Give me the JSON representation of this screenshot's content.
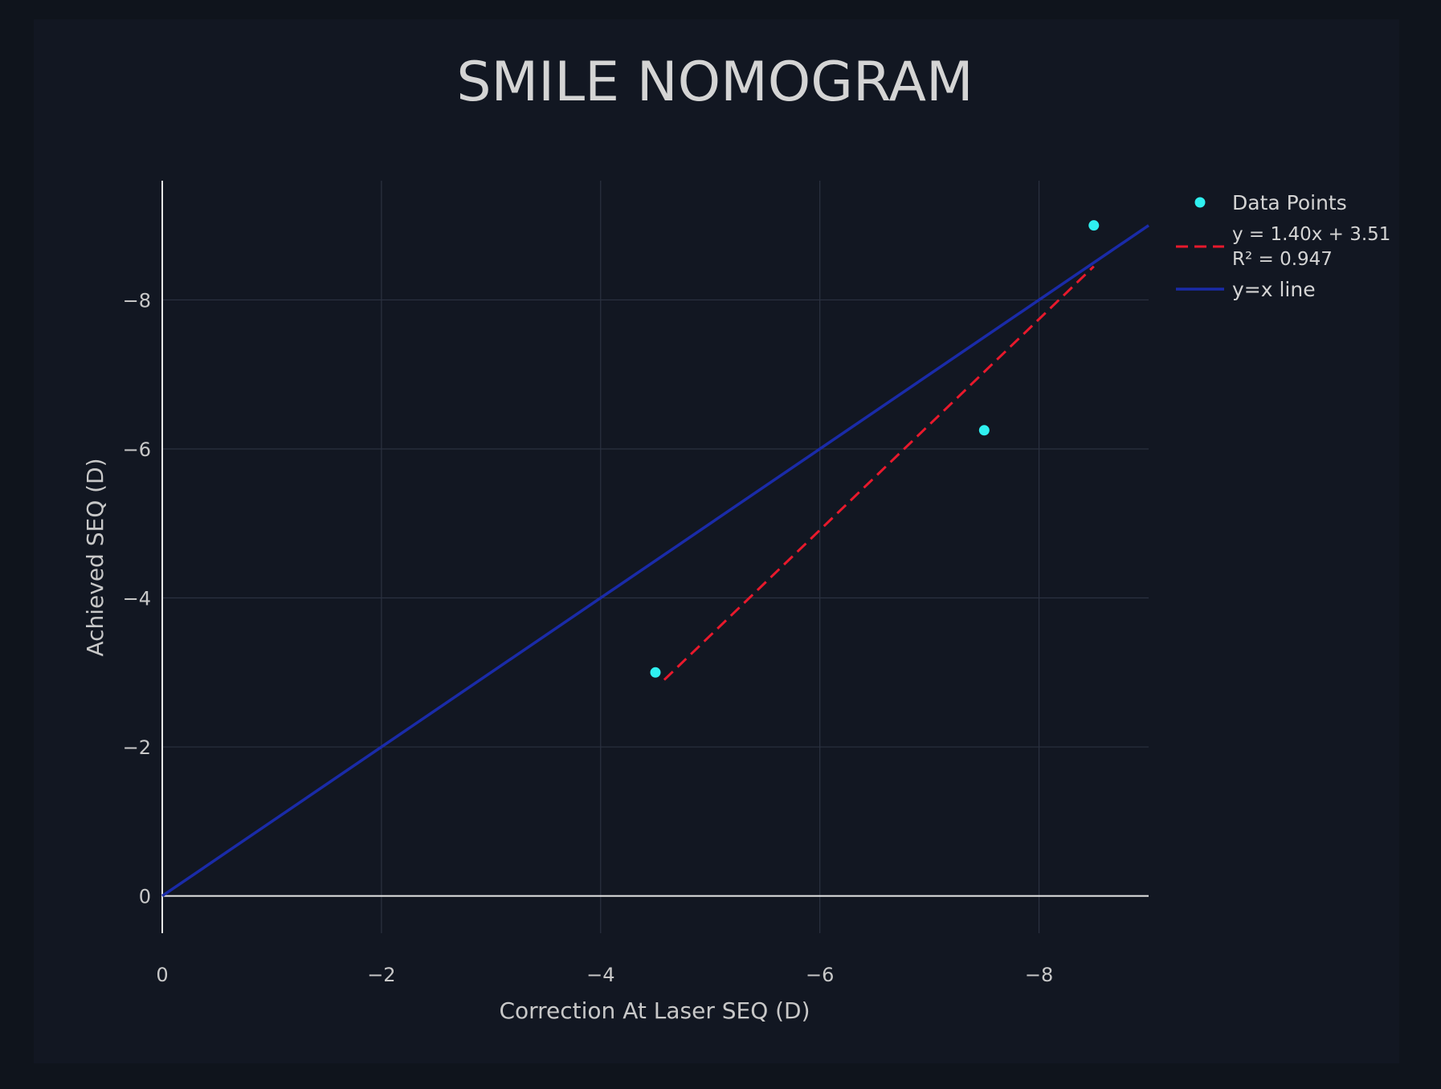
{
  "chart_data": {
    "type": "scatter",
    "title": "SMILE NOMOGRAM",
    "xlabel": "Correction At Laser SEQ (D)",
    "ylabel": "Achieved SEQ (D)",
    "xlim": [
      0,
      -9
    ],
    "ylim": [
      0.5,
      -9.6
    ],
    "x_ticks": [
      0,
      -2,
      -4,
      -6,
      -8
    ],
    "y_ticks": [
      0,
      -2,
      -4,
      -6,
      -8
    ],
    "x_tick_labels": [
      "0",
      "−2",
      "−4",
      "−6",
      "−8"
    ],
    "y_tick_labels": [
      "0",
      "−2",
      "−4",
      "−6",
      "−8"
    ],
    "grid": true,
    "legend_position": "right",
    "series": [
      {
        "name": "Data Points",
        "kind": "markers",
        "color": "#2ff0f0",
        "x": [
          -4.5,
          -7.5,
          -8.5
        ],
        "y": [
          -3.0,
          -6.25,
          -9.0
        ]
      },
      {
        "name": "y = 1.40x + 3.51",
        "name_line2": "R² = 0.947",
        "kind": "line",
        "dash": "dashed",
        "color": "#e8192c",
        "x": [
          -4.58,
          -8.5
        ],
        "y": [
          -2.9,
          -8.45
        ]
      },
      {
        "name": "y=x line",
        "kind": "line",
        "color": "#1a2ba8",
        "x": [
          0,
          -9
        ],
        "y": [
          0,
          -9
        ]
      }
    ]
  }
}
